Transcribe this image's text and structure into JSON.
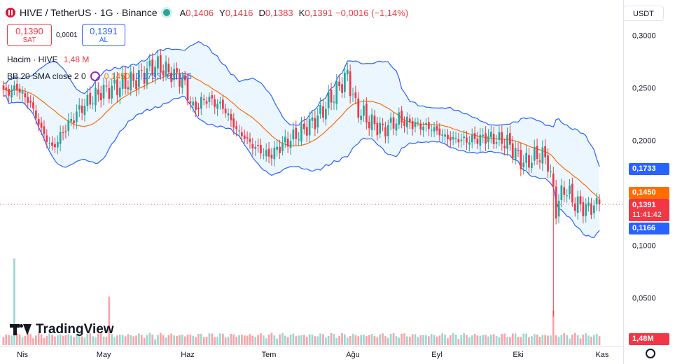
{
  "header": {
    "symbol": "HIVE / TetherUS · 1G · Binance",
    "ohlc": [
      {
        "k": "A",
        "v": "0,1406"
      },
      {
        "k": "Y",
        "v": "0,1416"
      },
      {
        "k": "D",
        "v": "0,1383"
      },
      {
        "k": "K",
        "v": "0,1391"
      }
    ],
    "change": "−0,0016 (−1,14%)"
  },
  "trade": {
    "sell_price": "0,1390",
    "sell_label": "SAT",
    "spread": "0,0001",
    "buy_price": "0,1391",
    "buy_label": "AL"
  },
  "legend": {
    "volume_label": "Hacim · HIVE",
    "volume_value": "1,48 M",
    "bb_label": "BB 20 SMA close 2 0",
    "bb_basis": "0,1450",
    "bb_upper": "0,1733",
    "bb_lower": "0,1166"
  },
  "currency": "USDT",
  "price_tags": {
    "upper": "0,1733",
    "basis": "0,1450",
    "last": "0,1391",
    "countdown": "11:41:42",
    "lower": "0,1166",
    "volume": "1,48M"
  },
  "branding": "TradingView",
  "colors": {
    "up": "#26a69a",
    "down": "#f23645",
    "basis": "#ff6d00",
    "band": "#2962ff",
    "band_fill": "#e3f2fd"
  },
  "chart_data": {
    "type": "candlestick",
    "title": "HIVE / TetherUS · 1G · Binance",
    "y_ticks": [
      "0,3000",
      "0,2500",
      "0,2000",
      "0,1000",
      "0,0500"
    ],
    "y_tick_values": [
      0.3,
      0.25,
      0.2,
      0.1,
      0.05
    ],
    "x_ticks": [
      "Nis",
      "May",
      "Haz",
      "Tem",
      "Ağu",
      "Eyl",
      "Eki",
      "Kas"
    ],
    "x_tick_dates": [
      "2024-04-01",
      "2024-05-01",
      "2024-06-01",
      "2024-07-01",
      "2024-08-01",
      "2024-09-01",
      "2024-10-01",
      "2024-11-01"
    ],
    "date_range": [
      "2024-03-25",
      "2024-10-31"
    ],
    "ylim": [
      0.0,
      0.31
    ],
    "close_anchors": [
      [
        "2024-03-25",
        0.245
      ],
      [
        "2024-03-30",
        0.25
      ],
      [
        "2024-04-04",
        0.235
      ],
      [
        "2024-04-08",
        0.21
      ],
      [
        "2024-04-12",
        0.192
      ],
      [
        "2024-04-17",
        0.212
      ],
      [
        "2024-04-23",
        0.232
      ],
      [
        "2024-04-30",
        0.246
      ],
      [
        "2024-05-07",
        0.252
      ],
      [
        "2024-05-13",
        0.258
      ],
      [
        "2024-05-20",
        0.272
      ],
      [
        "2024-05-25",
        0.265
      ],
      [
        "2024-05-30",
        0.258
      ],
      [
        "2024-06-03",
        0.23
      ],
      [
        "2024-06-08",
        0.24
      ],
      [
        "2024-06-14",
        0.232
      ],
      [
        "2024-06-19",
        0.21
      ],
      [
        "2024-06-25",
        0.195
      ],
      [
        "2024-07-01",
        0.185
      ],
      [
        "2024-07-07",
        0.198
      ],
      [
        "2024-07-13",
        0.208
      ],
      [
        "2024-07-19",
        0.222
      ],
      [
        "2024-07-24",
        0.24
      ],
      [
        "2024-07-30",
        0.262
      ],
      [
        "2024-08-02",
        0.232
      ],
      [
        "2024-08-07",
        0.218
      ],
      [
        "2024-08-12",
        0.21
      ],
      [
        "2024-08-18",
        0.22
      ],
      [
        "2024-08-24",
        0.215
      ],
      [
        "2024-08-30",
        0.212
      ],
      [
        "2024-09-05",
        0.202
      ],
      [
        "2024-09-12",
        0.2
      ],
      [
        "2024-09-20",
        0.203
      ],
      [
        "2024-09-27",
        0.198
      ],
      [
        "2024-10-03",
        0.178
      ],
      [
        "2024-10-09",
        0.187
      ],
      [
        "2024-10-12",
        0.18
      ],
      [
        "2024-10-15",
        0.135
      ],
      [
        "2024-10-18",
        0.155
      ],
      [
        "2024-10-22",
        0.14
      ],
      [
        "2024-10-26",
        0.135
      ],
      [
        "2024-10-31",
        0.1391
      ]
    ],
    "wick_event": {
      "date": "2024-10-14",
      "low": 0.032
    },
    "bollinger": {
      "period": 20,
      "source": "close",
      "stdev": 2,
      "basis": 0.145,
      "upper": 0.1733,
      "lower": 0.1166
    },
    "last_price": 0.1391,
    "volume_last": "1,48M",
    "volume_spikes": [
      [
        "2024-03-29",
        0.75
      ],
      [
        "2024-05-03",
        0.42
      ],
      [
        "2024-10-14",
        0.3
      ]
    ]
  }
}
